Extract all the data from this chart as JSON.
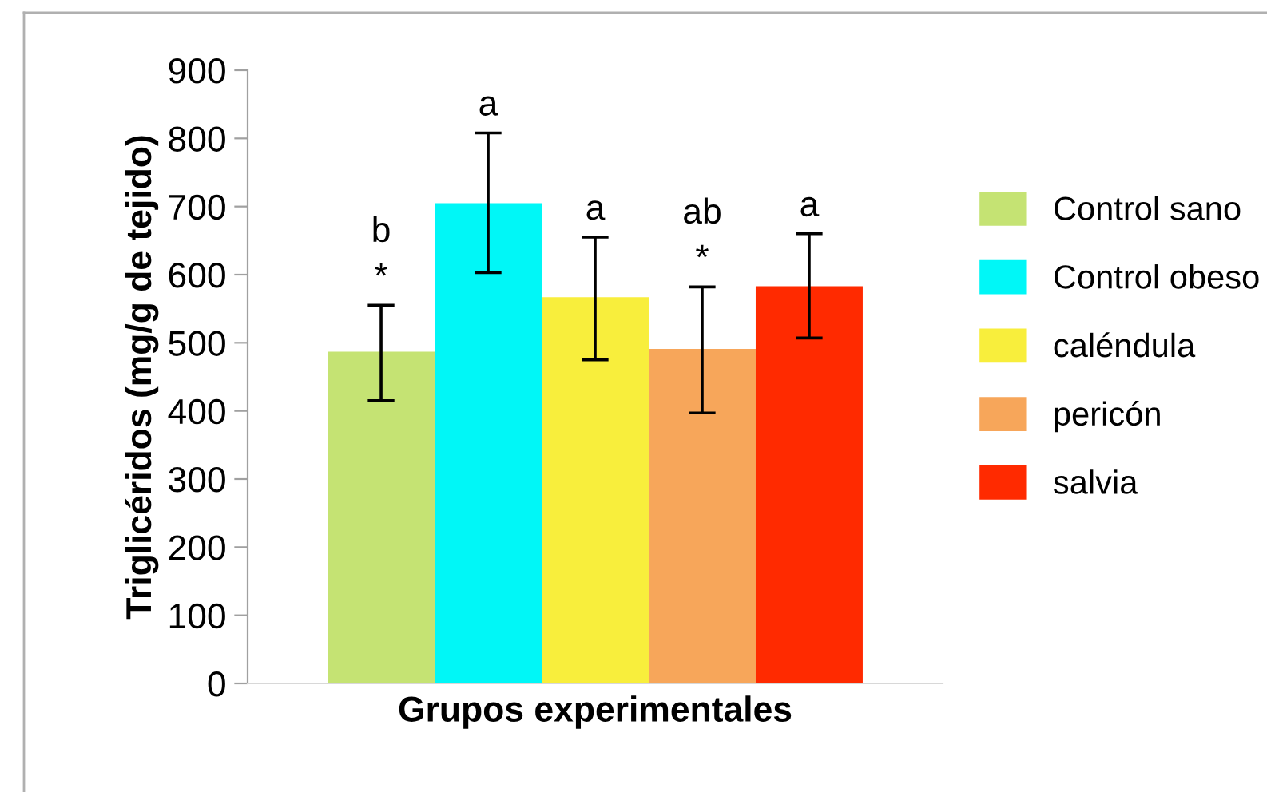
{
  "chart_data": {
    "type": "bar",
    "xlabel": "Grupos experimentales",
    "ylabel": "Triglicéridos (mg/g de tejido)",
    "categories": [
      null
    ],
    "series": [
      {
        "name": "Control sano",
        "color": "#c5e373",
        "values": [
          487
        ],
        "errors": [
          [
            415,
            555
          ]
        ]
      },
      {
        "name": "Control obeso",
        "color": "#00f7f7",
        "values": [
          705
        ],
        "errors": [
          [
            603,
            808
          ]
        ]
      },
      {
        "name": "caléndula",
        "color": "#f8ee3c",
        "values": [
          567
        ],
        "errors": [
          [
            475,
            655
          ]
        ]
      },
      {
        "name": "pericón",
        "color": "#f7a65a",
        "values": [
          491
        ],
        "errors": [
          [
            397,
            582
          ]
        ]
      },
      {
        "name": "salvia",
        "color": "#ff2a00",
        "values": [
          583
        ],
        "errors": [
          [
            507,
            660
          ]
        ]
      }
    ],
    "annotations": [
      "b\n*",
      "a",
      "a",
      "ab\n*",
      "a"
    ],
    "ylim": [
      0,
      900
    ],
    "yticks": [
      0,
      100,
      200,
      300,
      400,
      500,
      600,
      700,
      800,
      900
    ],
    "grid": false,
    "legend": "right"
  }
}
